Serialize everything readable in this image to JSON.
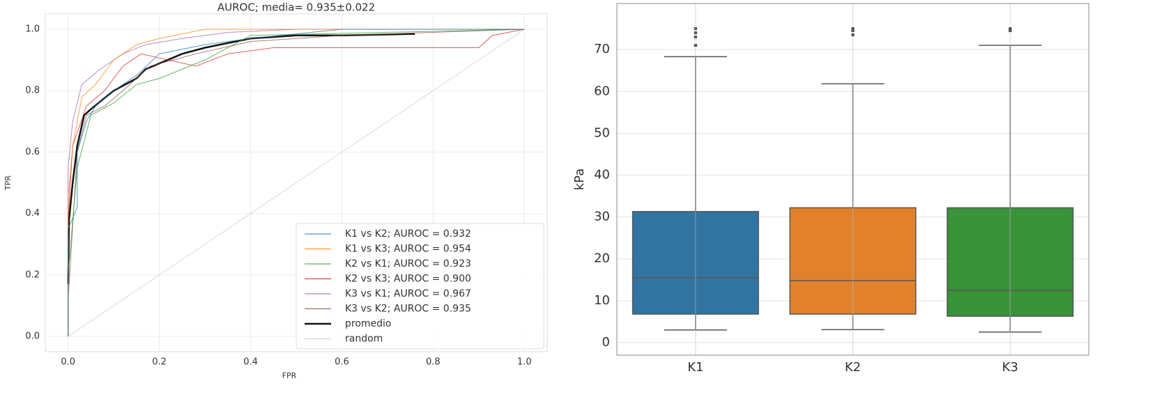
{
  "chart_data": [
    {
      "type": "line",
      "title": "AUROC; media= 0.935±0.022",
      "x_label": "FPR",
      "y_label": "TPR",
      "xlim": [
        -0.05,
        1.05
      ],
      "ylim": [
        -0.05,
        1.05
      ],
      "xticks": [
        {
          "value": 0,
          "label": "0.0"
        },
        0.2,
        0.4,
        0.6,
        0.8,
        {
          "value": 1,
          "label": "1.0"
        }
      ],
      "yticks": [
        {
          "value": 0,
          "label": "0.0"
        },
        0.2,
        0.4,
        0.6,
        0.8,
        {
          "value": 1,
          "label": "1.0"
        }
      ],
      "grid": true,
      "legend": "lower right",
      "series": [
        {
          "name": "K1 vs K2; AUROC = 0.932",
          "color": "#1f77b4",
          "linewidth": 1,
          "x": [
            0,
            0,
            0.02,
            0.02,
            0.04,
            0.06,
            0.1,
            0.15,
            0.2,
            0.3,
            0.4,
            0.6,
            1.0
          ],
          "values": [
            0,
            0.35,
            0.42,
            0.6,
            0.7,
            0.75,
            0.8,
            0.85,
            0.92,
            0.95,
            0.97,
            1.0,
            1.0
          ]
        },
        {
          "name": "K1 vs K3; AUROC = 0.954",
          "color": "#ff7f0e",
          "linewidth": 1,
          "x": [
            0,
            0,
            0.01,
            0.03,
            0.06,
            0.1,
            0.15,
            0.2,
            0.3,
            0.5,
            1.0
          ],
          "values": [
            0,
            0.45,
            0.62,
            0.78,
            0.82,
            0.9,
            0.95,
            0.97,
            1.0,
            1.0,
            1.0
          ]
        },
        {
          "name": "K2 vs K1; AUROC = 0.923",
          "color": "#2ca02c",
          "linewidth": 1,
          "x": [
            0,
            0,
            0.02,
            0.05,
            0.1,
            0.15,
            0.2,
            0.25,
            0.3,
            0.4,
            1.0
          ],
          "values": [
            0,
            0.2,
            0.55,
            0.72,
            0.76,
            0.82,
            0.84,
            0.87,
            0.9,
            0.98,
            1.0
          ]
        },
        {
          "name": "K2 vs K3; AUROC = 0.900",
          "color": "#d62728",
          "linewidth": 1,
          "x": [
            0,
            0,
            0.01,
            0.04,
            0.08,
            0.12,
            0.16,
            0.28,
            0.35,
            0.45,
            0.9,
            0.93,
            1.0
          ],
          "values": [
            0,
            0.38,
            0.62,
            0.75,
            0.8,
            0.88,
            0.92,
            0.88,
            0.92,
            0.94,
            0.94,
            0.98,
            1.0
          ]
        },
        {
          "name": "K3 vs K1; AUROC = 0.967",
          "color": "#9467bd",
          "linewidth": 1,
          "x": [
            0,
            0,
            0.01,
            0.03,
            0.07,
            0.12,
            0.17,
            0.25,
            0.35,
            0.5,
            1.0
          ],
          "values": [
            0,
            0.55,
            0.7,
            0.82,
            0.87,
            0.92,
            0.95,
            0.97,
            0.99,
            1.0,
            1.0
          ]
        },
        {
          "name": "K3 vs K2; AUROC = 0.935",
          "color": "#8c564b",
          "linewidth": 1,
          "x": [
            0,
            0,
            0.02,
            0.04,
            0.08,
            0.12,
            0.18,
            0.28,
            0.4,
            0.6,
            1.0
          ],
          "values": [
            0,
            0.12,
            0.6,
            0.72,
            0.75,
            0.8,
            0.88,
            0.92,
            0.96,
            0.98,
            1.0
          ]
        },
        {
          "name": "promedio",
          "color": "#111111",
          "linewidth": 2.5,
          "x": [
            0,
            0.002,
            0.01,
            0.02,
            0.035,
            0.05,
            0.1,
            0.15,
            0.17,
            0.25,
            0.3,
            0.4,
            0.5,
            0.6,
            0.76
          ],
          "values": [
            0.17,
            0.38,
            0.5,
            0.62,
            0.72,
            0.74,
            0.8,
            0.84,
            0.87,
            0.92,
            0.94,
            0.97,
            0.98,
            0.98,
            0.985
          ]
        },
        {
          "name": "random",
          "color": "#cccccc",
          "linewidth": 1,
          "x": [
            0,
            1
          ],
          "values": [
            0,
            1
          ]
        }
      ]
    },
    {
      "type": "box",
      "y_label": "kPa",
      "categories": [
        "K1",
        "K2",
        "K3"
      ],
      "colors": [
        "#3274a1",
        "#e1812c",
        "#3a923a"
      ],
      "ylim": [
        -3,
        81
      ],
      "yticks": [
        0,
        10,
        20,
        30,
        40,
        50,
        60,
        70
      ],
      "grid": true,
      "whislo": [
        3,
        3.1,
        2.5
      ],
      "q1": [
        6.8,
        6.8,
        6.3
      ],
      "median": [
        15.5,
        14.8,
        12.5
      ],
      "q3": [
        31.3,
        32.2,
        32.2
      ],
      "whishi": [
        68.3,
        61.8,
        71
      ],
      "fliers": [
        [
          71,
          73,
          74,
          75
        ],
        [
          73.5,
          74.5,
          75
        ],
        [
          74.5,
          75
        ]
      ]
    }
  ]
}
